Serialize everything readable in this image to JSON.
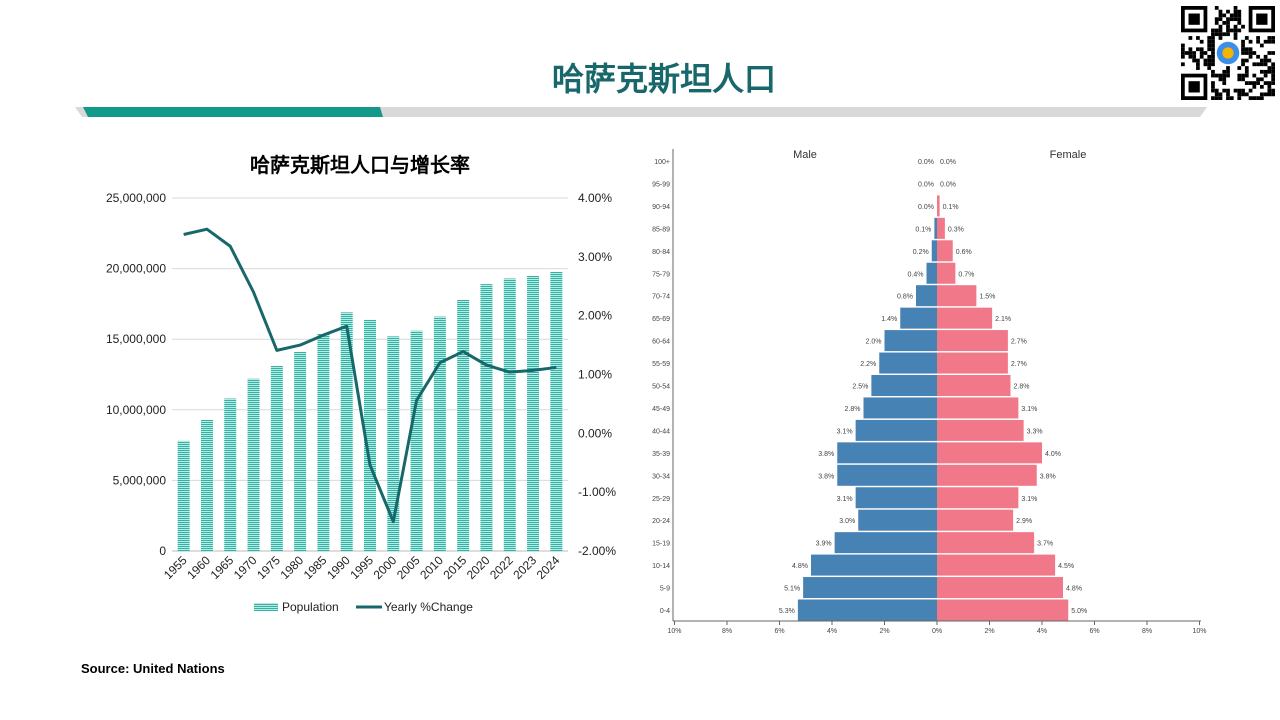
{
  "header": {
    "title": "哈萨克斯坦人口"
  },
  "footer": {
    "source": "Source: United Nations"
  },
  "colors": {
    "accent": "#17676b",
    "bar": "#2bb5a5",
    "line": "#17676b",
    "male": "#4682b4",
    "female": "#f07888",
    "header_band_teal": "#13998a",
    "header_band_grey": "#d9d9d9"
  },
  "chart_data": [
    {
      "type": "bar",
      "title": "哈萨克斯坦人口与增长率",
      "categories": [
        "1955",
        "1960",
        "1965",
        "1970",
        "1975",
        "1980",
        "1985",
        "1990",
        "1995",
        "2000",
        "2005",
        "2010",
        "2015",
        "2020",
        "2022",
        "2023",
        "2024"
      ],
      "series": [
        {
          "name": "Population",
          "type": "bar",
          "axis": "left",
          "values": [
            7800000,
            9300000,
            10800000,
            12200000,
            13100000,
            14100000,
            15400000,
            16900000,
            16400000,
            15200000,
            15600000,
            16600000,
            17800000,
            18900000,
            19300000,
            19500000,
            19800000
          ]
        },
        {
          "name": "Yearly %Change",
          "type": "line",
          "axis": "right",
          "values": [
            3.38,
            3.47,
            3.18,
            2.4,
            1.41,
            1.5,
            1.67,
            1.82,
            -0.54,
            -1.5,
            0.56,
            1.2,
            1.39,
            1.16,
            1.04,
            1.07,
            1.12
          ]
        }
      ],
      "left_axis": {
        "ylim": [
          0,
          25000000
        ],
        "ticks": [
          "0",
          "5,000,000",
          "10,000,000",
          "15,000,000",
          "20,000,000",
          "25,000,000"
        ]
      },
      "right_axis": {
        "ylim": [
          -2,
          4
        ],
        "ticks": [
          "-2.00%",
          "-1.00%",
          "0.00%",
          "1.00%",
          "2.00%",
          "3.00%",
          "4.00%"
        ]
      },
      "grid": true,
      "legend": "bottom"
    },
    {
      "type": "bar",
      "subtype": "population-pyramid",
      "categories": [
        "100+",
        "95-99",
        "90-94",
        "85-89",
        "80-84",
        "75-79",
        "70-74",
        "65-69",
        "60-64",
        "55-59",
        "50-54",
        "45-49",
        "40-44",
        "35-39",
        "30-34",
        "25-29",
        "20-24",
        "15-19",
        "10-14",
        "5-9",
        "0-4"
      ],
      "series": [
        {
          "name": "Male",
          "values": [
            0.0,
            0.0,
            0.0,
            0.1,
            0.2,
            0.4,
            0.8,
            1.4,
            2.0,
            2.2,
            2.5,
            2.8,
            3.1,
            3.8,
            3.8,
            3.1,
            3.0,
            3.9,
            4.8,
            5.1,
            5.3
          ]
        },
        {
          "name": "Female",
          "values": [
            0.0,
            0.0,
            0.1,
            0.3,
            0.6,
            0.7,
            1.5,
            2.1,
            2.7,
            2.7,
            2.8,
            3.1,
            3.3,
            4.0,
            3.8,
            3.1,
            2.9,
            3.7,
            4.5,
            4.8,
            5.0
          ]
        }
      ],
      "xlim": [
        -10,
        10
      ],
      "x_ticks": [
        "10%",
        "8%",
        "6%",
        "4%",
        "2%",
        "0%",
        "2%",
        "4%",
        "6%",
        "8%",
        "10%"
      ]
    }
  ]
}
